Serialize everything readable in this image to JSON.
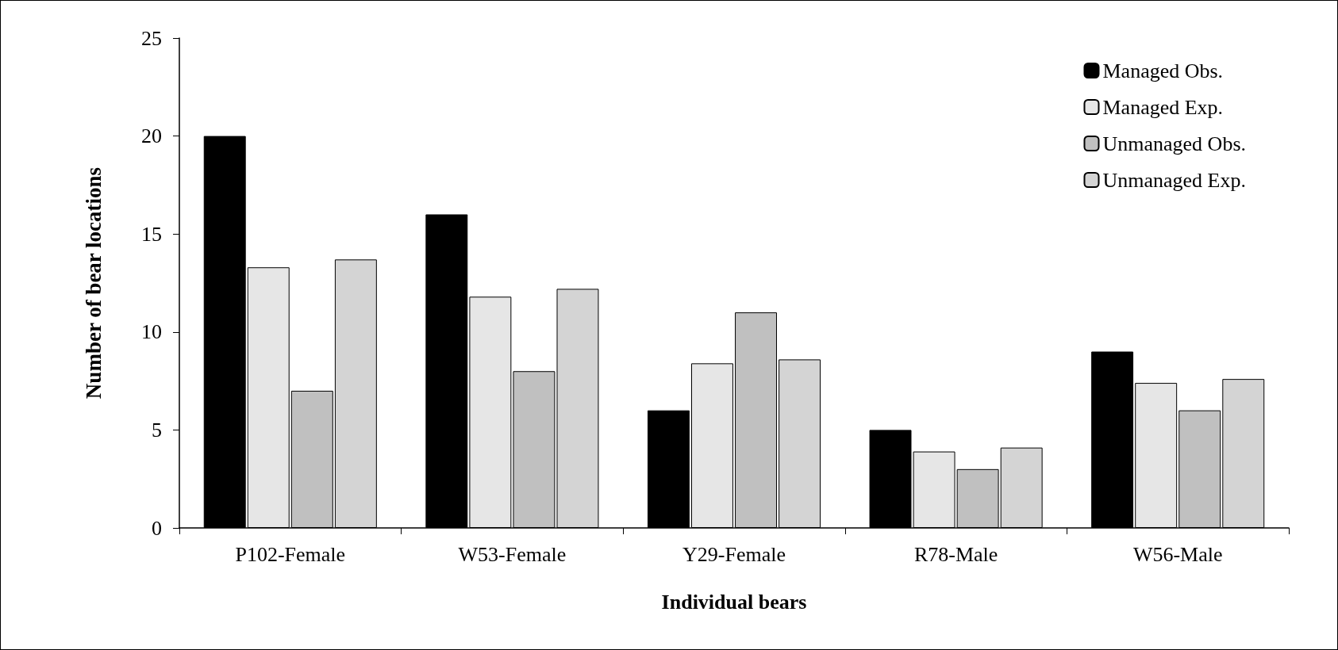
{
  "chart_data": {
    "type": "bar",
    "xlabel": "Individual bears",
    "ylabel": "Number of bear locations",
    "categories": [
      "P102-Female",
      "W53-Female",
      "Y29-Female",
      "R78-Male",
      "W56-Male"
    ],
    "series": [
      {
        "name": "Managed Obs.",
        "color": "#000000",
        "values": [
          20,
          16,
          6,
          5,
          9
        ]
      },
      {
        "name": "Managed Exp.",
        "color": "#e6e6e6",
        "values": [
          13.3,
          11.8,
          8.4,
          3.9,
          7.4
        ]
      },
      {
        "name": "Unmanaged Obs.",
        "color": "#c0c0c0",
        "values": [
          7,
          8,
          11,
          3,
          6
        ]
      },
      {
        "name": "Unmanaged Exp.",
        "color": "#d4d4d4",
        "values": [
          13.7,
          12.2,
          8.6,
          4.1,
          7.6
        ]
      }
    ],
    "ylim": [
      0,
      25
    ],
    "yticks": [
      0,
      5,
      10,
      15,
      20,
      25
    ],
    "grid": false,
    "legend": "top right"
  }
}
